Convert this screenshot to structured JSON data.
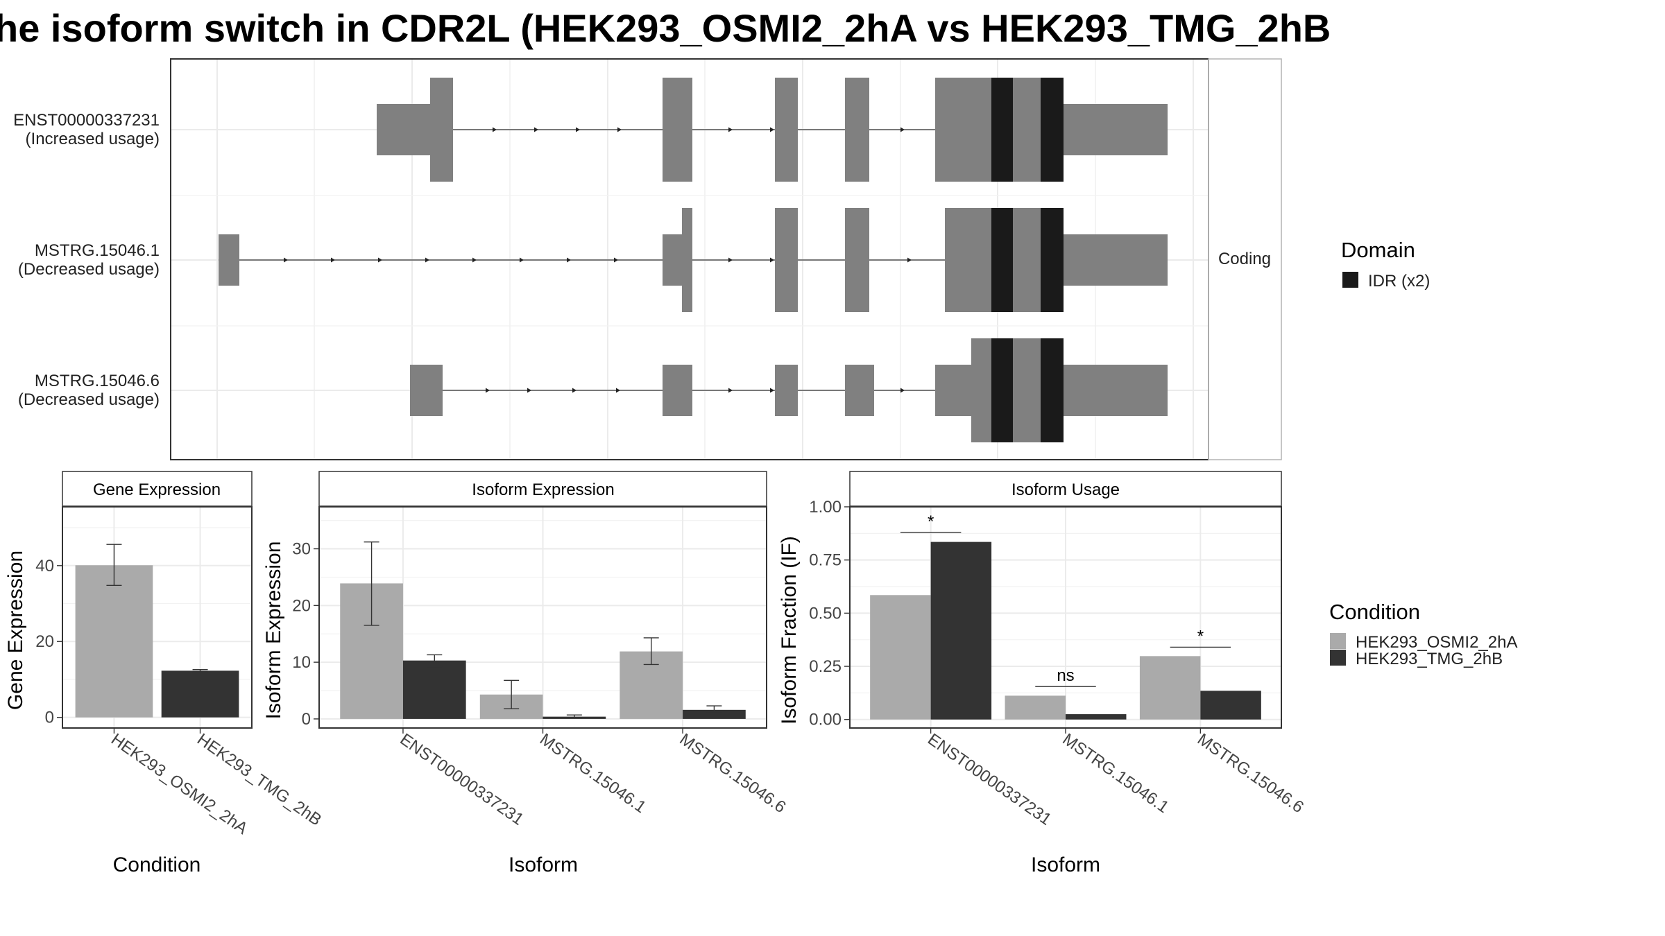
{
  "title": "he isoform switch in CDR2L (HEK293_OSMI2_2hA vs HEK293_TMG_2hB",
  "colors": {
    "condition_a": "#aaaaaa",
    "condition_b": "#333333",
    "exon": "#808080",
    "idr_domain": "#1a1a1a"
  },
  "structure": {
    "facet_label": "Coding",
    "transcripts": [
      {
        "id": "ENST00000337231",
        "status": "(Increased usage)"
      },
      {
        "id": "MSTRG.15046.1",
        "status": "(Decreased usage)"
      },
      {
        "id": "MSTRG.15046.6",
        "status": "(Decreased usage)"
      }
    ],
    "legend": {
      "title": "Domain",
      "items": [
        "IDR (x2)"
      ]
    }
  },
  "condition_legend": {
    "title": "Condition",
    "items": [
      "HEK293_OSMI2_2hA",
      "HEK293_TMG_2hB"
    ]
  },
  "chart_data": [
    {
      "type": "bar",
      "title": "Gene Expression",
      "xlabel": "Condition",
      "ylabel": "Gene Expression",
      "ylim": [
        -2.8,
        55.5
      ],
      "yticks": [
        0,
        20,
        40
      ],
      "categories": [
        "HEK293_OSMI2_2hA",
        "HEK293_TMG_2hB"
      ],
      "values": [
        40.1,
        12.3
      ],
      "errors": [
        [
          34.8,
          45.6
        ],
        [
          11.9,
          12.6
        ]
      ]
    },
    {
      "type": "bar",
      "title": "Isoform Expression",
      "xlabel": "Isoform",
      "ylabel": "Isoform Expression",
      "ylim": [
        -1.6,
        37.4
      ],
      "yticks": [
        0,
        10,
        20,
        30
      ],
      "categories": [
        "ENST00000337231",
        "MSTRG.15046.1",
        "MSTRG.15046.6"
      ],
      "series": [
        {
          "name": "HEK293_OSMI2_2hA",
          "values": [
            23.9,
            4.3,
            11.9
          ],
          "errors": [
            [
              16.5,
              31.2
            ],
            [
              1.8,
              6.8
            ],
            [
              9.6,
              14.3
            ]
          ]
        },
        {
          "name": "HEK293_TMG_2hB",
          "values": [
            10.3,
            0.4,
            1.6
          ],
          "errors": [
            [
              9.2,
              11.3
            ],
            [
              0.2,
              0.7
            ],
            [
              1.1,
              2.3
            ]
          ]
        }
      ]
    },
    {
      "type": "bar",
      "title": "Isoform Usage",
      "xlabel": "Isoform",
      "ylabel": "Isoform Fraction (IF)",
      "ylim": [
        -0.04,
        1.0
      ],
      "yticks": [
        0.0,
        0.25,
        0.5,
        0.75,
        1.0
      ],
      "ytick_labels": [
        "0.00",
        "0.25",
        "0.50",
        "0.75",
        "1.00"
      ],
      "categories": [
        "ENST00000337231",
        "MSTRG.15046.1",
        "MSTRG.15046.6"
      ],
      "series": [
        {
          "name": "HEK293_OSMI2_2hA",
          "values": [
            0.585,
            0.112,
            0.298
          ]
        },
        {
          "name": "HEK293_TMG_2hB",
          "values": [
            0.835,
            0.025,
            0.135
          ]
        }
      ],
      "significance": [
        {
          "category": "ENST00000337231",
          "label": "*",
          "y": 0.88
        },
        {
          "category": "MSTRG.15046.1",
          "label": "ns",
          "y": 0.155
        },
        {
          "category": "MSTRG.15046.6",
          "label": "*",
          "y": 0.34
        }
      ]
    }
  ]
}
